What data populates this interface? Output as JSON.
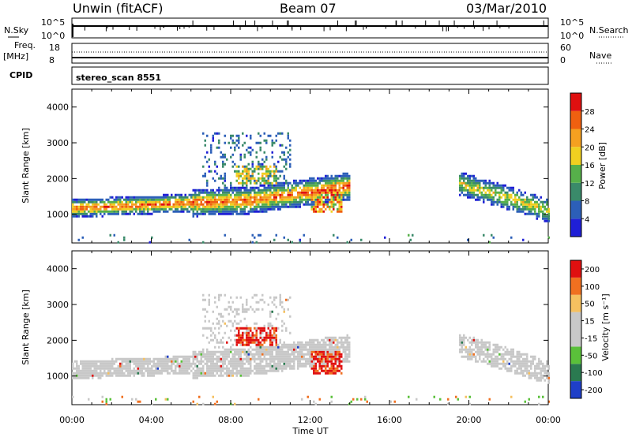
{
  "header": {
    "station": "Unwin (fitACF)",
    "beam": "Beam 07",
    "date": "03/Mar/2010",
    "cpid": "CPID",
    "scan": "stereo_scan 8551"
  },
  "top_panels": {
    "nsky_label": "N.Sky",
    "nsky_top": "10^5",
    "nsky_bottom": "10^0",
    "nsearch_label": "N.Search",
    "nsearch_top": "10^5",
    "nsearch_bottom": "10^0",
    "freq_label": "Freq.",
    "freq_unit": "[MHz]",
    "freq_top": "18",
    "freq_bottom": "8",
    "nave_label": "Nave",
    "nave_top": "60",
    "nave_bottom": "0"
  },
  "chart_data": [
    {
      "type": "heatmap",
      "name": "power",
      "ylabel": "Slant Range [km]",
      "ylim": [
        200,
        4500
      ],
      "yticks": [
        "1000",
        "2000",
        "3000",
        "4000"
      ],
      "xlim_hours": [
        0,
        24
      ],
      "colorbar": {
        "label": "Power [dB]",
        "ticks": [
          "4",
          "8",
          "12",
          "16",
          "20",
          "24",
          "28"
        ],
        "colors": [
          "#1f1fd6",
          "#2c5fb8",
          "#3a8a6a",
          "#56b04a",
          "#f0d020",
          "#f5a020",
          "#f06010",
          "#e01010"
        ]
      },
      "regions": [
        {
          "x": [
            0,
            14
          ],
          "y": [
            900,
            1600
          ],
          "level": "strong"
        },
        {
          "x": [
            7,
            11
          ],
          "y": [
            1600,
            3300
          ],
          "level": "weak"
        },
        {
          "x": [
            12,
            14
          ],
          "y": [
            1000,
            1800
          ],
          "level": "strong"
        },
        {
          "x": [
            19.5,
            24
          ],
          "y": [
            1000,
            2100
          ],
          "level": "medium"
        }
      ]
    },
    {
      "type": "heatmap",
      "name": "velocity",
      "ylabel": "Slant Range [km]",
      "ylim": [
        200,
        4500
      ],
      "yticks": [
        "1000",
        "2000",
        "3000",
        "4000"
      ],
      "xlim_hours": [
        0,
        24
      ],
      "xticks": [
        "00:00",
        "04:00",
        "08:00",
        "12:00",
        "16:00",
        "20:00",
        "00:00"
      ],
      "xlabel": "Time UT",
      "colorbar": {
        "label": "Velocity [m s⁻¹]",
        "ticks": [
          "200",
          "100",
          "50",
          "15",
          "-15",
          "-50",
          "-100",
          "-200"
        ],
        "colors": [
          "#1f3fc8",
          "#2a7a50",
          "#5ac03a",
          "#c8c8c8",
          "#c8c8c8",
          "#f5c060",
          "#f07020",
          "#e01010"
        ]
      }
    }
  ]
}
